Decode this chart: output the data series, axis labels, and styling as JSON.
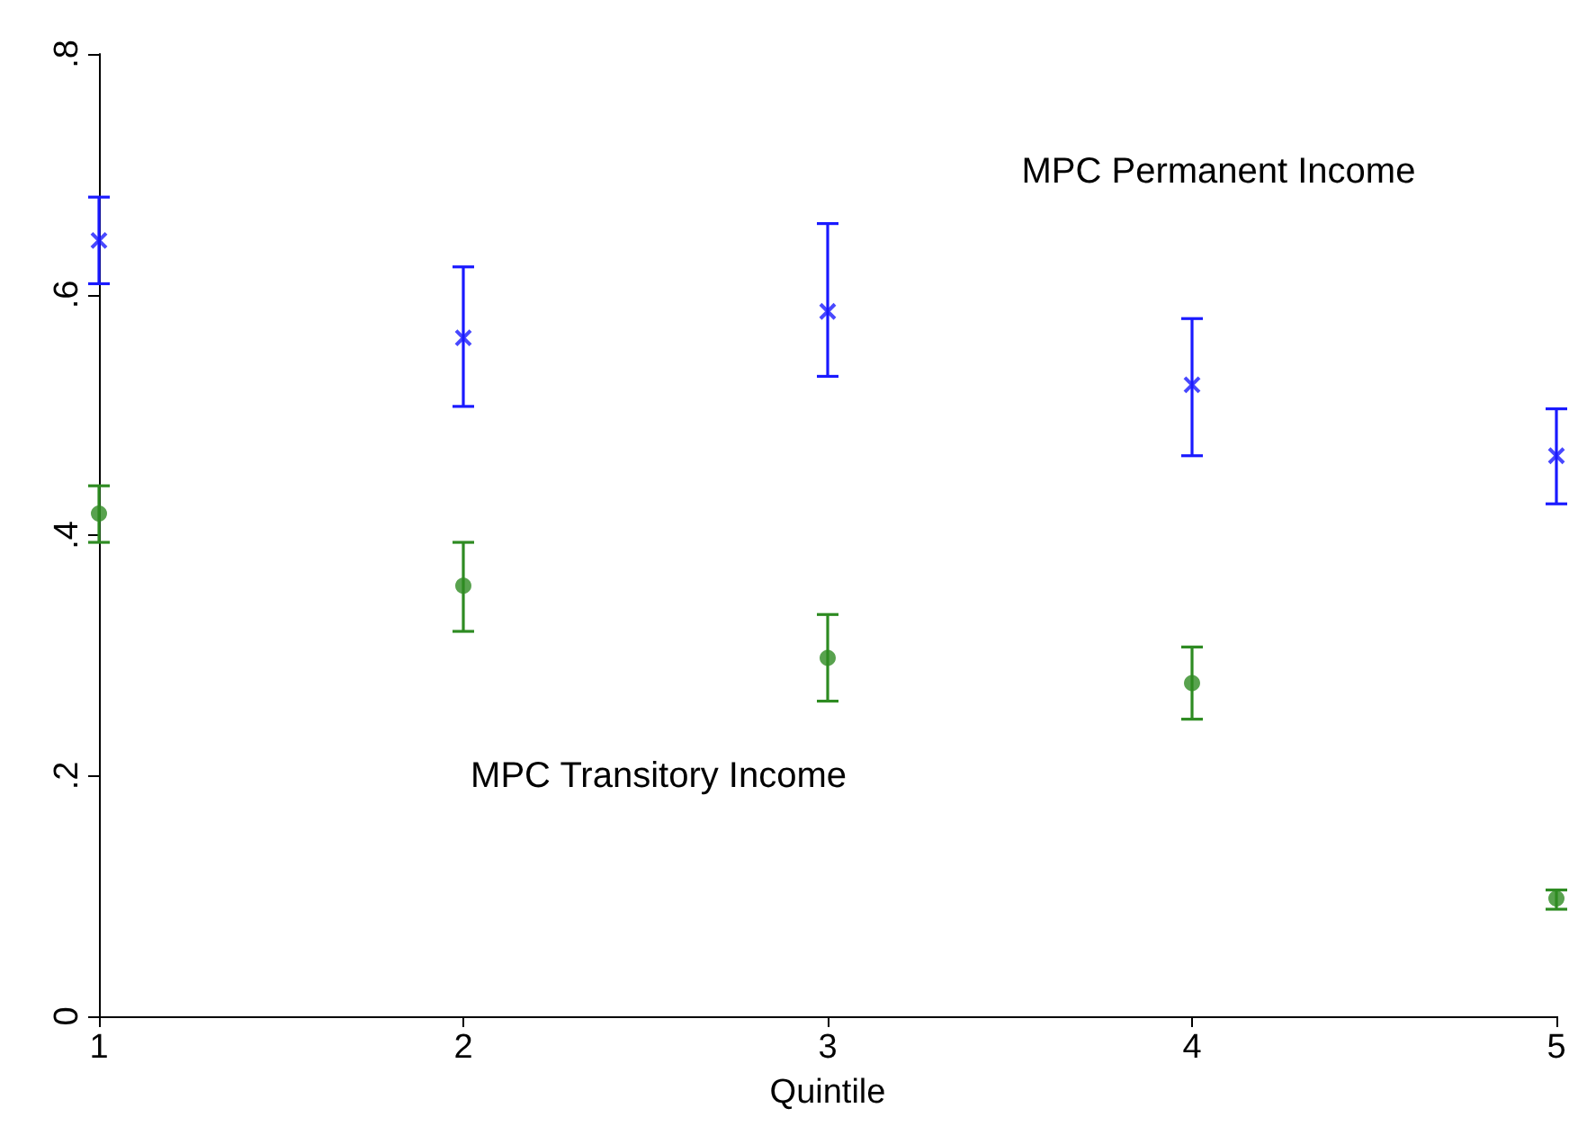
{
  "chart_data": {
    "type": "scatter",
    "xlabel": "Quintile",
    "x": [
      1,
      2,
      3,
      4,
      5
    ],
    "series": [
      {
        "color": "#1a1aff",
        "marker": "cross",
        "values": [
          0.645,
          0.564,
          0.586,
          0.525,
          0.466
        ],
        "errors": [
          [
            0.609,
            0.681
          ],
          [
            0.507,
            0.623
          ],
          [
            0.532,
            0.659
          ],
          [
            0.466,
            0.58
          ],
          [
            0.426,
            0.505
          ]
        ]
      },
      {
        "color": "#2e8b22",
        "marker": "circle",
        "values": [
          0.418,
          0.358,
          0.298,
          0.277,
          0.098
        ],
        "errors": [
          [
            0.394,
            0.441
          ],
          [
            0.32,
            0.394
          ],
          [
            0.262,
            0.334
          ],
          [
            0.247,
            0.307
          ],
          [
            0.089,
            0.105
          ]
        ]
      }
    ],
    "annotations": [
      "MPC Permanent Income",
      "MPC Transitory Income"
    ],
    "xlim": [
      1,
      5
    ],
    "xticks": [
      1,
      2,
      3,
      4,
      5
    ],
    "ylim": [
      0,
      0.8
    ],
    "yticks": [
      0,
      {
        "value": 0.2,
        "label": ".2"
      },
      {
        "value": 0.4,
        "label": ".4"
      },
      {
        "value": 0.6,
        "label": ".6"
      },
      {
        "value": 0.8,
        "label": ".8"
      }
    ],
    "grid": false
  }
}
